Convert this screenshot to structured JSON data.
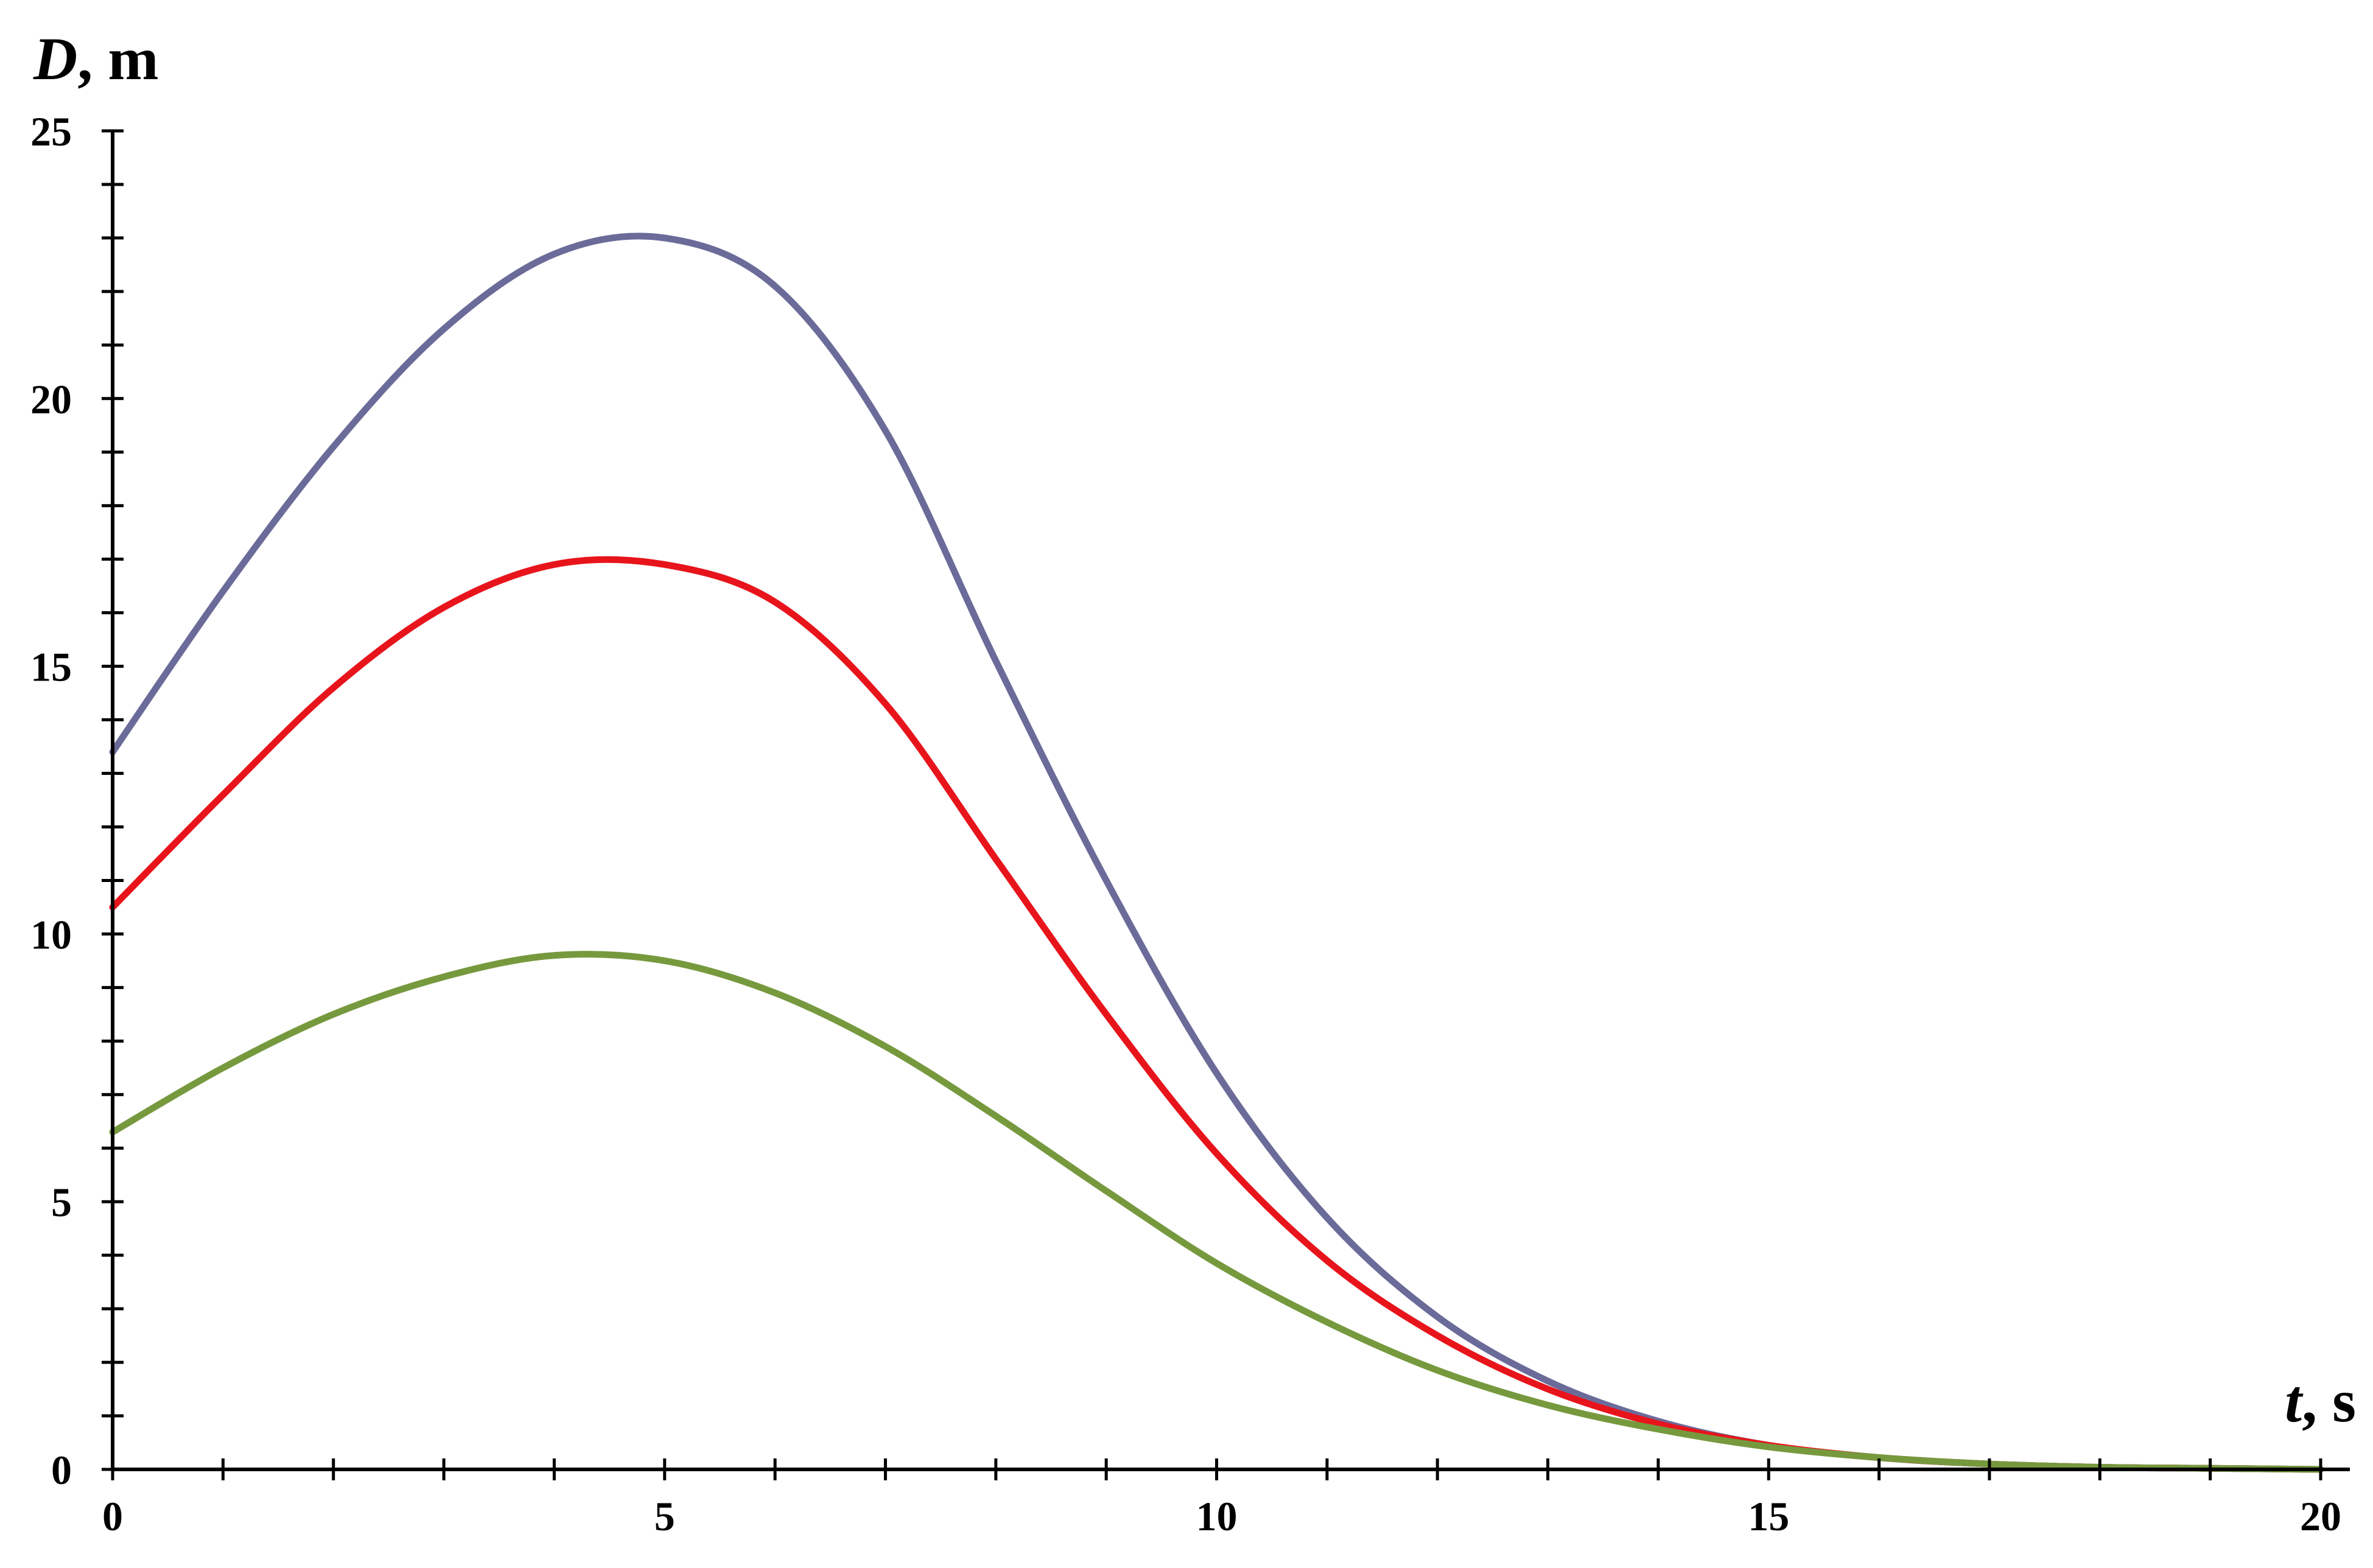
{
  "chart_data": {
    "type": "line",
    "xlabel_var": "t",
    "xlabel_unit": ", s",
    "ylabel_var": "D",
    "ylabel_unit": ", m",
    "xlim": [
      0,
      20
    ],
    "ylim": [
      0,
      25
    ],
    "x_ticks": [
      0,
      5,
      10,
      15,
      20
    ],
    "y_ticks": [
      0,
      5,
      10,
      15,
      20,
      25
    ],
    "x_minor_step": 1,
    "y_minor_step": 1,
    "grid": false,
    "legend": "none",
    "series": [
      {
        "color": "#6b6b9a",
        "x": [
          0,
          1,
          2,
          3,
          4,
          5,
          6,
          7,
          8,
          9,
          10,
          11,
          12,
          13,
          14,
          15,
          16,
          17,
          18,
          19,
          20
        ],
        "y": [
          13.4,
          16.4,
          19.1,
          21.3,
          22.7,
          23.0,
          22.1,
          19.4,
          15.1,
          11.0,
          7.4,
          4.7,
          2.85,
          1.65,
          0.9,
          0.45,
          0.22,
          0.1,
          0.04,
          0.02,
          0.0
        ]
      },
      {
        "color": "#e8141b",
        "x": [
          0,
          1,
          2,
          3,
          4,
          5,
          6,
          7,
          8,
          9,
          10,
          11,
          12,
          13,
          14,
          15,
          16,
          17,
          18,
          19,
          20
        ],
        "y": [
          10.5,
          12.6,
          14.6,
          16.1,
          16.9,
          16.9,
          16.2,
          14.3,
          11.4,
          8.5,
          5.9,
          3.9,
          2.5,
          1.5,
          0.85,
          0.45,
          0.22,
          0.1,
          0.04,
          0.02,
          0.0
        ]
      },
      {
        "color": "#76993e",
        "x": [
          0,
          1,
          2,
          3,
          4,
          5,
          6,
          7,
          8,
          9,
          10,
          11,
          12,
          13,
          14,
          15,
          16,
          17,
          18,
          19,
          20
        ],
        "y": [
          6.3,
          7.5,
          8.5,
          9.2,
          9.6,
          9.5,
          8.9,
          7.9,
          6.6,
          5.2,
          3.85,
          2.75,
          1.85,
          1.2,
          0.75,
          0.42,
          0.22,
          0.1,
          0.04,
          0.02,
          0.0
        ]
      }
    ]
  }
}
